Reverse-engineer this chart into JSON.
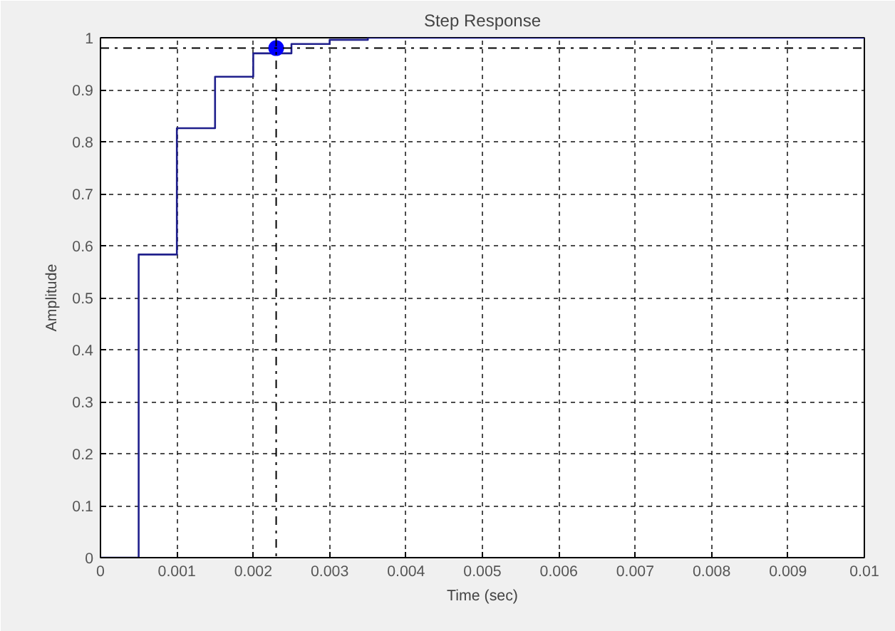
{
  "chart_data": {
    "type": "step",
    "title": "Step Response",
    "xlabel": "Time (sec)",
    "ylabel": "Amplitude",
    "series": [
      {
        "color": "#1f1f8c",
        "x": [
          0,
          0.0005,
          0.001,
          0.0015,
          0.002,
          0.0025,
          0.003,
          0.0035,
          0.01
        ],
        "values": [
          0,
          0.583,
          0.826,
          0.925,
          0.97,
          0.988,
          0.996,
          1.0,
          1.0
        ]
      },
      {
        "type": "scatter",
        "marker": "circle",
        "color": "#0000ff",
        "x": [
          0.0023
        ],
        "values": [
          0.98
        ]
      }
    ],
    "ref_lines": [
      {
        "axis": "y",
        "value": 0.98,
        "color": "#000000",
        "line_style": "dashdot"
      },
      {
        "axis": "x",
        "value": 0.0023,
        "color": "#000000",
        "line_style": "dashdot"
      }
    ],
    "xlim": [
      0,
      0.01
    ],
    "ylim": [
      0,
      1
    ],
    "xticks": [
      0,
      0.001,
      0.002,
      0.003,
      0.004,
      0.005,
      0.006,
      0.007,
      0.008,
      0.009,
      0.01
    ],
    "yticks": [
      0,
      0.1,
      0.2,
      0.3,
      0.4,
      0.5,
      0.6,
      0.7,
      0.8,
      0.9,
      1
    ],
    "grid": true
  }
}
